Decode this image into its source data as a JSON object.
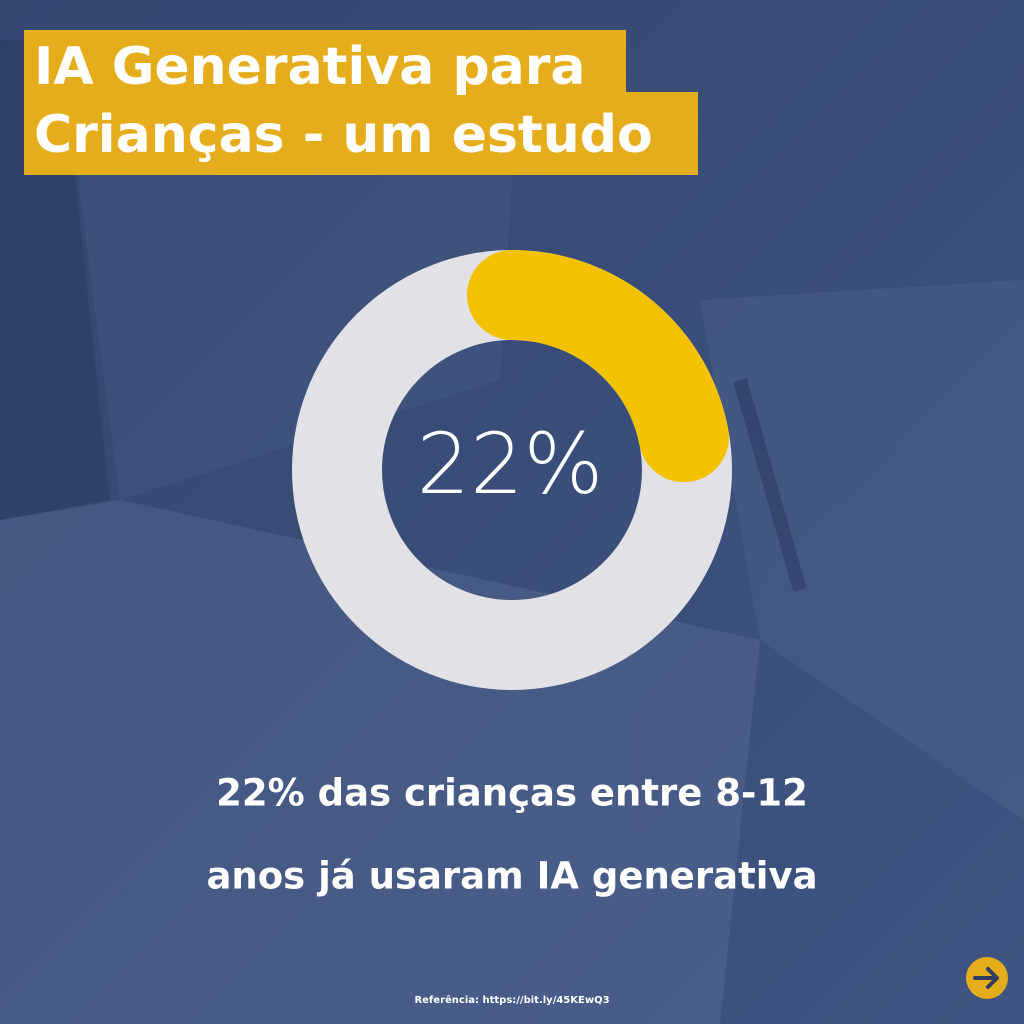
{
  "chart_data": {
    "type": "donut",
    "title_lines": [
      "IA Generativa para",
      "Crianças - um estudo"
    ],
    "values": [
      22
    ],
    "value_labels": [
      "22%"
    ],
    "total": 100,
    "color": "#f2c200",
    "track_color": "#e2e1e6",
    "caption_lines": [
      "22% das crianças entre 8-12",
      "anos  já usaram IA generativa"
    ],
    "source": "Referência: https://bit.ly/45KEwQ3"
  }
}
